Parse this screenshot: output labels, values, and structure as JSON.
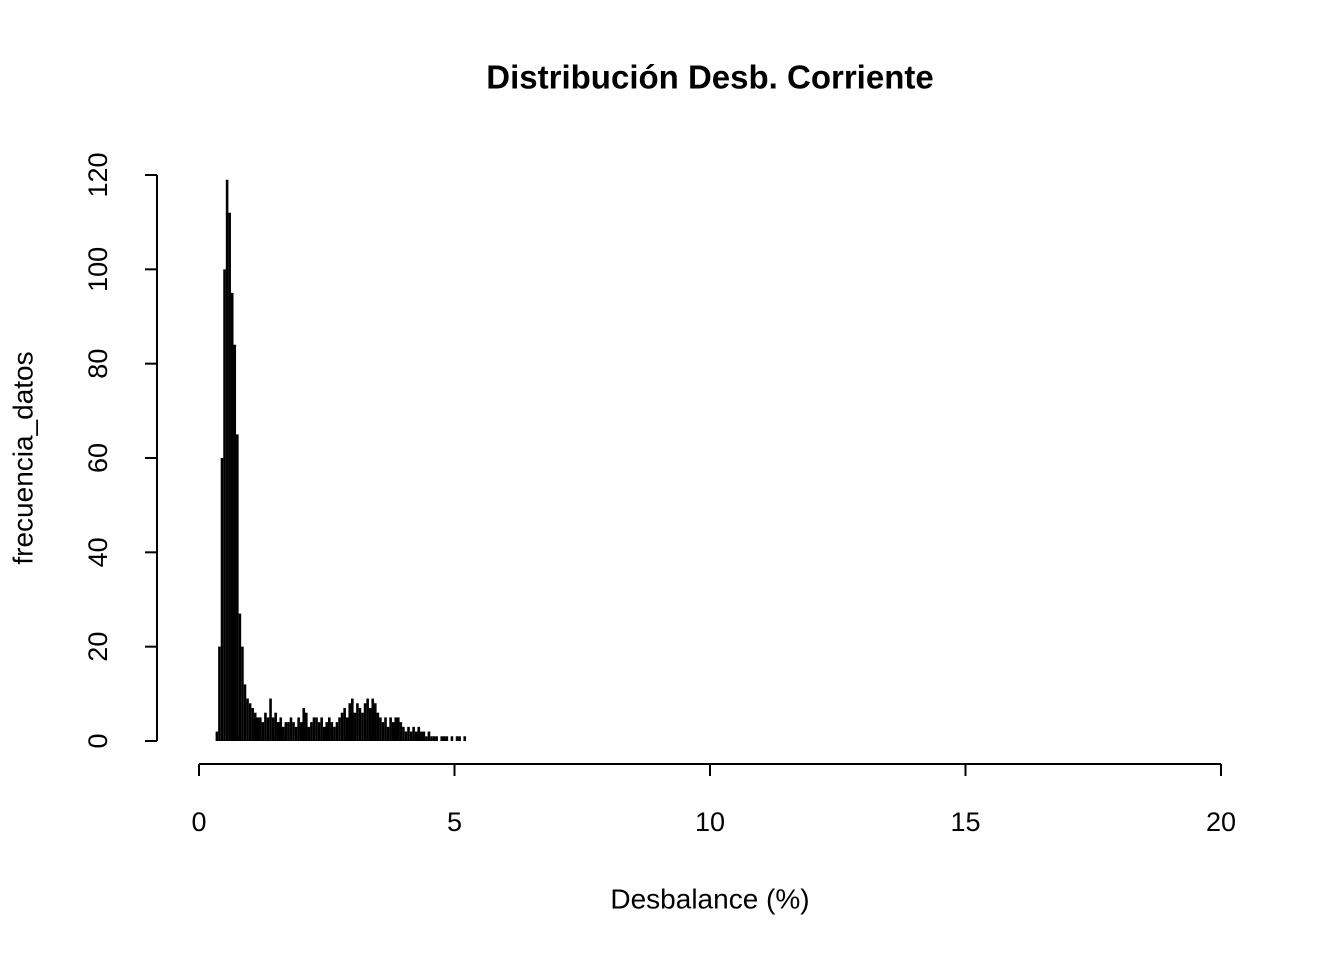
{
  "chart_data": {
    "type": "spike",
    "title": "Distribución Desb. Corriente",
    "x_label": "Desbalance (%)",
    "y_label": "frecuencia_datos",
    "color": "#000000",
    "x": [
      0.35,
      0.4,
      0.45,
      0.5,
      0.55,
      0.6,
      0.65,
      0.7,
      0.75,
      0.8,
      0.85,
      0.9,
      0.95,
      1,
      1.05,
      1.1,
      1.15,
      1.2,
      1.25,
      1.3,
      1.35,
      1.4,
      1.45,
      1.5,
      1.55,
      1.6,
      1.65,
      1.7,
      1.75,
      1.8,
      1.85,
      1.9,
      1.95,
      2,
      2.05,
      2.1,
      2.15,
      2.2,
      2.25,
      2.3,
      2.35,
      2.4,
      2.45,
      2.5,
      2.55,
      2.6,
      2.65,
      2.7,
      2.75,
      2.8,
      2.85,
      2.9,
      2.95,
      3,
      3.05,
      3.1,
      3.15,
      3.2,
      3.25,
      3.3,
      3.35,
      3.4,
      3.45,
      3.5,
      3.55,
      3.6,
      3.65,
      3.7,
      3.75,
      3.8,
      3.85,
      3.9,
      3.95,
      4,
      4.05,
      4.1,
      4.15,
      4.2,
      4.25,
      4.3,
      4.35,
      4.4,
      4.45,
      4.5,
      4.55,
      4.6,
      4.65,
      4.7,
      4.75,
      4.8,
      4.85,
      4.9,
      4.95,
      5,
      5.05,
      5.1,
      5.15,
      5.2
    ],
    "values": [
      2,
      20,
      60,
      100,
      119,
      112,
      95,
      84,
      65,
      27,
      20,
      12,
      9,
      8,
      7,
      6,
      5,
      5,
      4,
      6,
      5,
      9,
      5,
      6,
      4,
      5,
      3,
      4,
      4,
      5,
      4,
      3,
      5,
      4,
      7,
      6,
      3,
      4,
      5,
      5,
      4,
      5,
      3,
      4,
      5,
      4,
      3,
      4,
      5,
      6,
      7,
      5,
      8,
      9,
      6,
      8,
      7,
      6,
      8,
      9,
      7,
      9,
      8,
      6,
      5,
      4,
      5,
      3,
      5,
      4,
      5,
      5,
      4,
      3,
      2,
      3,
      2,
      3,
      2,
      3,
      2,
      2,
      1,
      2,
      1,
      1,
      1,
      0,
      1,
      1,
      1,
      0,
      1,
      0,
      1,
      1,
      0,
      1
    ],
    "xlim": [
      0,
      20
    ],
    "xticks": [
      0,
      5,
      10,
      15,
      20
    ],
    "ylim": [
      0,
      120
    ],
    "yticks": [
      0,
      20,
      40,
      60,
      80,
      100,
      120
    ]
  }
}
